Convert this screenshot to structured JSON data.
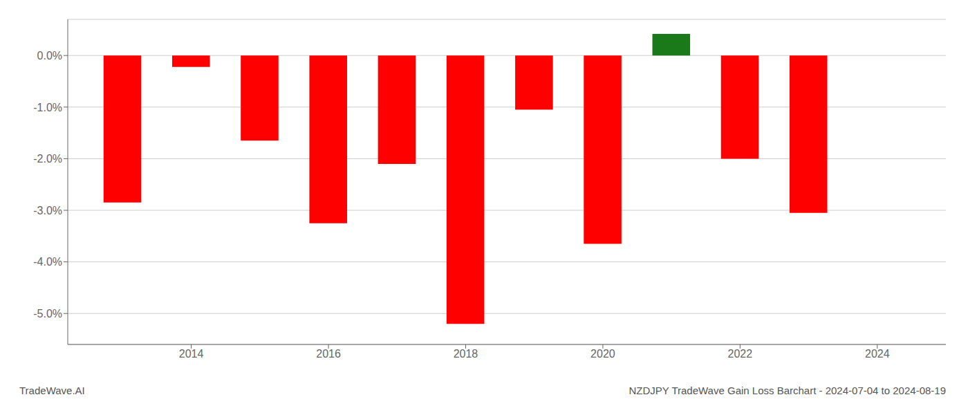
{
  "chart_data": {
    "type": "bar",
    "title": "NZDJPY TradeWave Gain Loss Barchart - 2024-07-04 to 2024-08-19",
    "annotations": [
      "TradeWave.AI"
    ],
    "x": [
      2013,
      2014,
      2015,
      2016,
      2017,
      2018,
      2019,
      2020,
      2021,
      2022,
      2023
    ],
    "values": [
      -2.85,
      -0.22,
      -1.65,
      -3.25,
      -2.1,
      -5.2,
      -1.05,
      -3.65,
      0.42,
      -2.0,
      -3.05
    ],
    "colors": [
      "#ff0000",
      "#ff0000",
      "#ff0000",
      "#ff0000",
      "#ff0000",
      "#ff0000",
      "#ff0000",
      "#ff0000",
      "#1a7a1a",
      "#ff0000",
      "#ff0000"
    ],
    "xlim": [
      2012.2,
      2025.0
    ],
    "xticks": [
      2014,
      2016,
      2018,
      2020,
      2022,
      2024
    ],
    "ylim": [
      -5.6,
      0.7
    ],
    "yticks": [
      {
        "value": 0.0,
        "label": "0.0%"
      },
      {
        "value": -1.0,
        "label": "-1.0%"
      },
      {
        "value": -2.0,
        "label": "-2.0%"
      },
      {
        "value": -3.0,
        "label": "-3.0%"
      },
      {
        "value": -4.0,
        "label": "-4.0%"
      },
      {
        "value": -5.0,
        "label": "-5.0%"
      }
    ],
    "grid": true
  }
}
